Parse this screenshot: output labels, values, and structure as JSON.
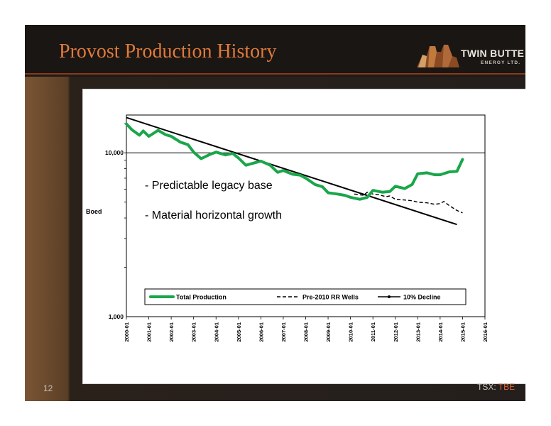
{
  "slide": {
    "title": "Provost Production History",
    "page_number": "12",
    "ticker_prefix": "TSX: ",
    "ticker_symbol": "TBE",
    "logo": {
      "name": "TWIN BUTTE",
      "subtitle": "ENERGY LTD."
    },
    "colors": {
      "title": "#e07a3c",
      "accent_rule": "#8a3b1a",
      "total_production": "#1aa64a"
    }
  },
  "chart_data": {
    "type": "line",
    "title": "",
    "xlabel": "",
    "ylabel": "Boed",
    "y_scale": "log",
    "ylim": [
      1000,
      17000
    ],
    "y_ticks": [
      {
        "value": 10000,
        "label": "10,000"
      },
      {
        "value": 1000,
        "label": "1,000"
      }
    ],
    "x_ticks": [
      "2000-01",
      "2001-01",
      "2002-01",
      "2003-01",
      "2004-01",
      "2005-01",
      "2006-01",
      "2007-01",
      "2008-01",
      "2009-01",
      "2010-01",
      "2011-01",
      "2012-01",
      "2013-01",
      "2014-01",
      "2015-01",
      "2016-01"
    ],
    "legend_position": "bottom-inside",
    "grid": "horizontal",
    "annotations": [
      "- Predictable legacy base",
      "- Material horizontal growth"
    ],
    "series": [
      {
        "name": "Total Production",
        "style": "solid-thick-green",
        "points": [
          [
            "2000-01",
            15000
          ],
          [
            "2000-04",
            13800
          ],
          [
            "2000-08",
            12800
          ],
          [
            "2000-10",
            13600
          ],
          [
            "2001-01",
            12600
          ],
          [
            "2001-06",
            13700
          ],
          [
            "2001-10",
            12900
          ],
          [
            "2002-01",
            12600
          ],
          [
            "2002-06",
            11600
          ],
          [
            "2002-10",
            11200
          ],
          [
            "2003-01",
            10100
          ],
          [
            "2003-05",
            9200
          ],
          [
            "2003-10",
            9800
          ],
          [
            "2004-01",
            10100
          ],
          [
            "2004-06",
            9700
          ],
          [
            "2004-10",
            9900
          ],
          [
            "2005-01",
            9300
          ],
          [
            "2005-05",
            8400
          ],
          [
            "2005-10",
            8700
          ],
          [
            "2006-01",
            8900
          ],
          [
            "2006-06",
            8400
          ],
          [
            "2006-10",
            7600
          ],
          [
            "2007-01",
            7800
          ],
          [
            "2007-06",
            7400
          ],
          [
            "2007-10",
            7300
          ],
          [
            "2008-01",
            7000
          ],
          [
            "2008-06",
            6400
          ],
          [
            "2008-10",
            6200
          ],
          [
            "2009-01",
            5700
          ],
          [
            "2009-06",
            5600
          ],
          [
            "2009-10",
            5500
          ],
          [
            "2010-01",
            5350
          ],
          [
            "2010-06",
            5200
          ],
          [
            "2010-10",
            5350
          ],
          [
            "2011-01",
            5900
          ],
          [
            "2011-06",
            5750
          ],
          [
            "2011-10",
            5800
          ],
          [
            "2012-01",
            6250
          ],
          [
            "2012-06",
            6050
          ],
          [
            "2012-10",
            6400
          ],
          [
            "2013-01",
            7450
          ],
          [
            "2013-06",
            7550
          ],
          [
            "2013-10",
            7350
          ],
          [
            "2014-01",
            7350
          ],
          [
            "2014-06",
            7650
          ],
          [
            "2014-10",
            7700
          ],
          [
            "2015-01",
            9100
          ]
        ]
      },
      {
        "name": "Pre-2010 RR Wells",
        "style": "dashed-black",
        "points": [
          [
            "2010-03",
            5600
          ],
          [
            "2010-08",
            5500
          ],
          [
            "2010-10",
            5750
          ],
          [
            "2011-01",
            5600
          ],
          [
            "2011-04",
            5550
          ],
          [
            "2011-08",
            5400
          ],
          [
            "2011-10",
            5450
          ],
          [
            "2012-01",
            5200
          ],
          [
            "2012-06",
            5150
          ],
          [
            "2012-10",
            5100
          ],
          [
            "2013-01",
            5000
          ],
          [
            "2013-06",
            4950
          ],
          [
            "2013-10",
            4850
          ],
          [
            "2014-01",
            4900
          ],
          [
            "2014-03",
            5050
          ],
          [
            "2014-06",
            4750
          ],
          [
            "2014-10",
            4450
          ],
          [
            "2015-01",
            4300
          ]
        ]
      },
      {
        "name": "10% Decline",
        "style": "solid-black",
        "points": [
          [
            "2000-01",
            16400
          ],
          [
            "2014-10",
            3650
          ]
        ]
      }
    ]
  }
}
